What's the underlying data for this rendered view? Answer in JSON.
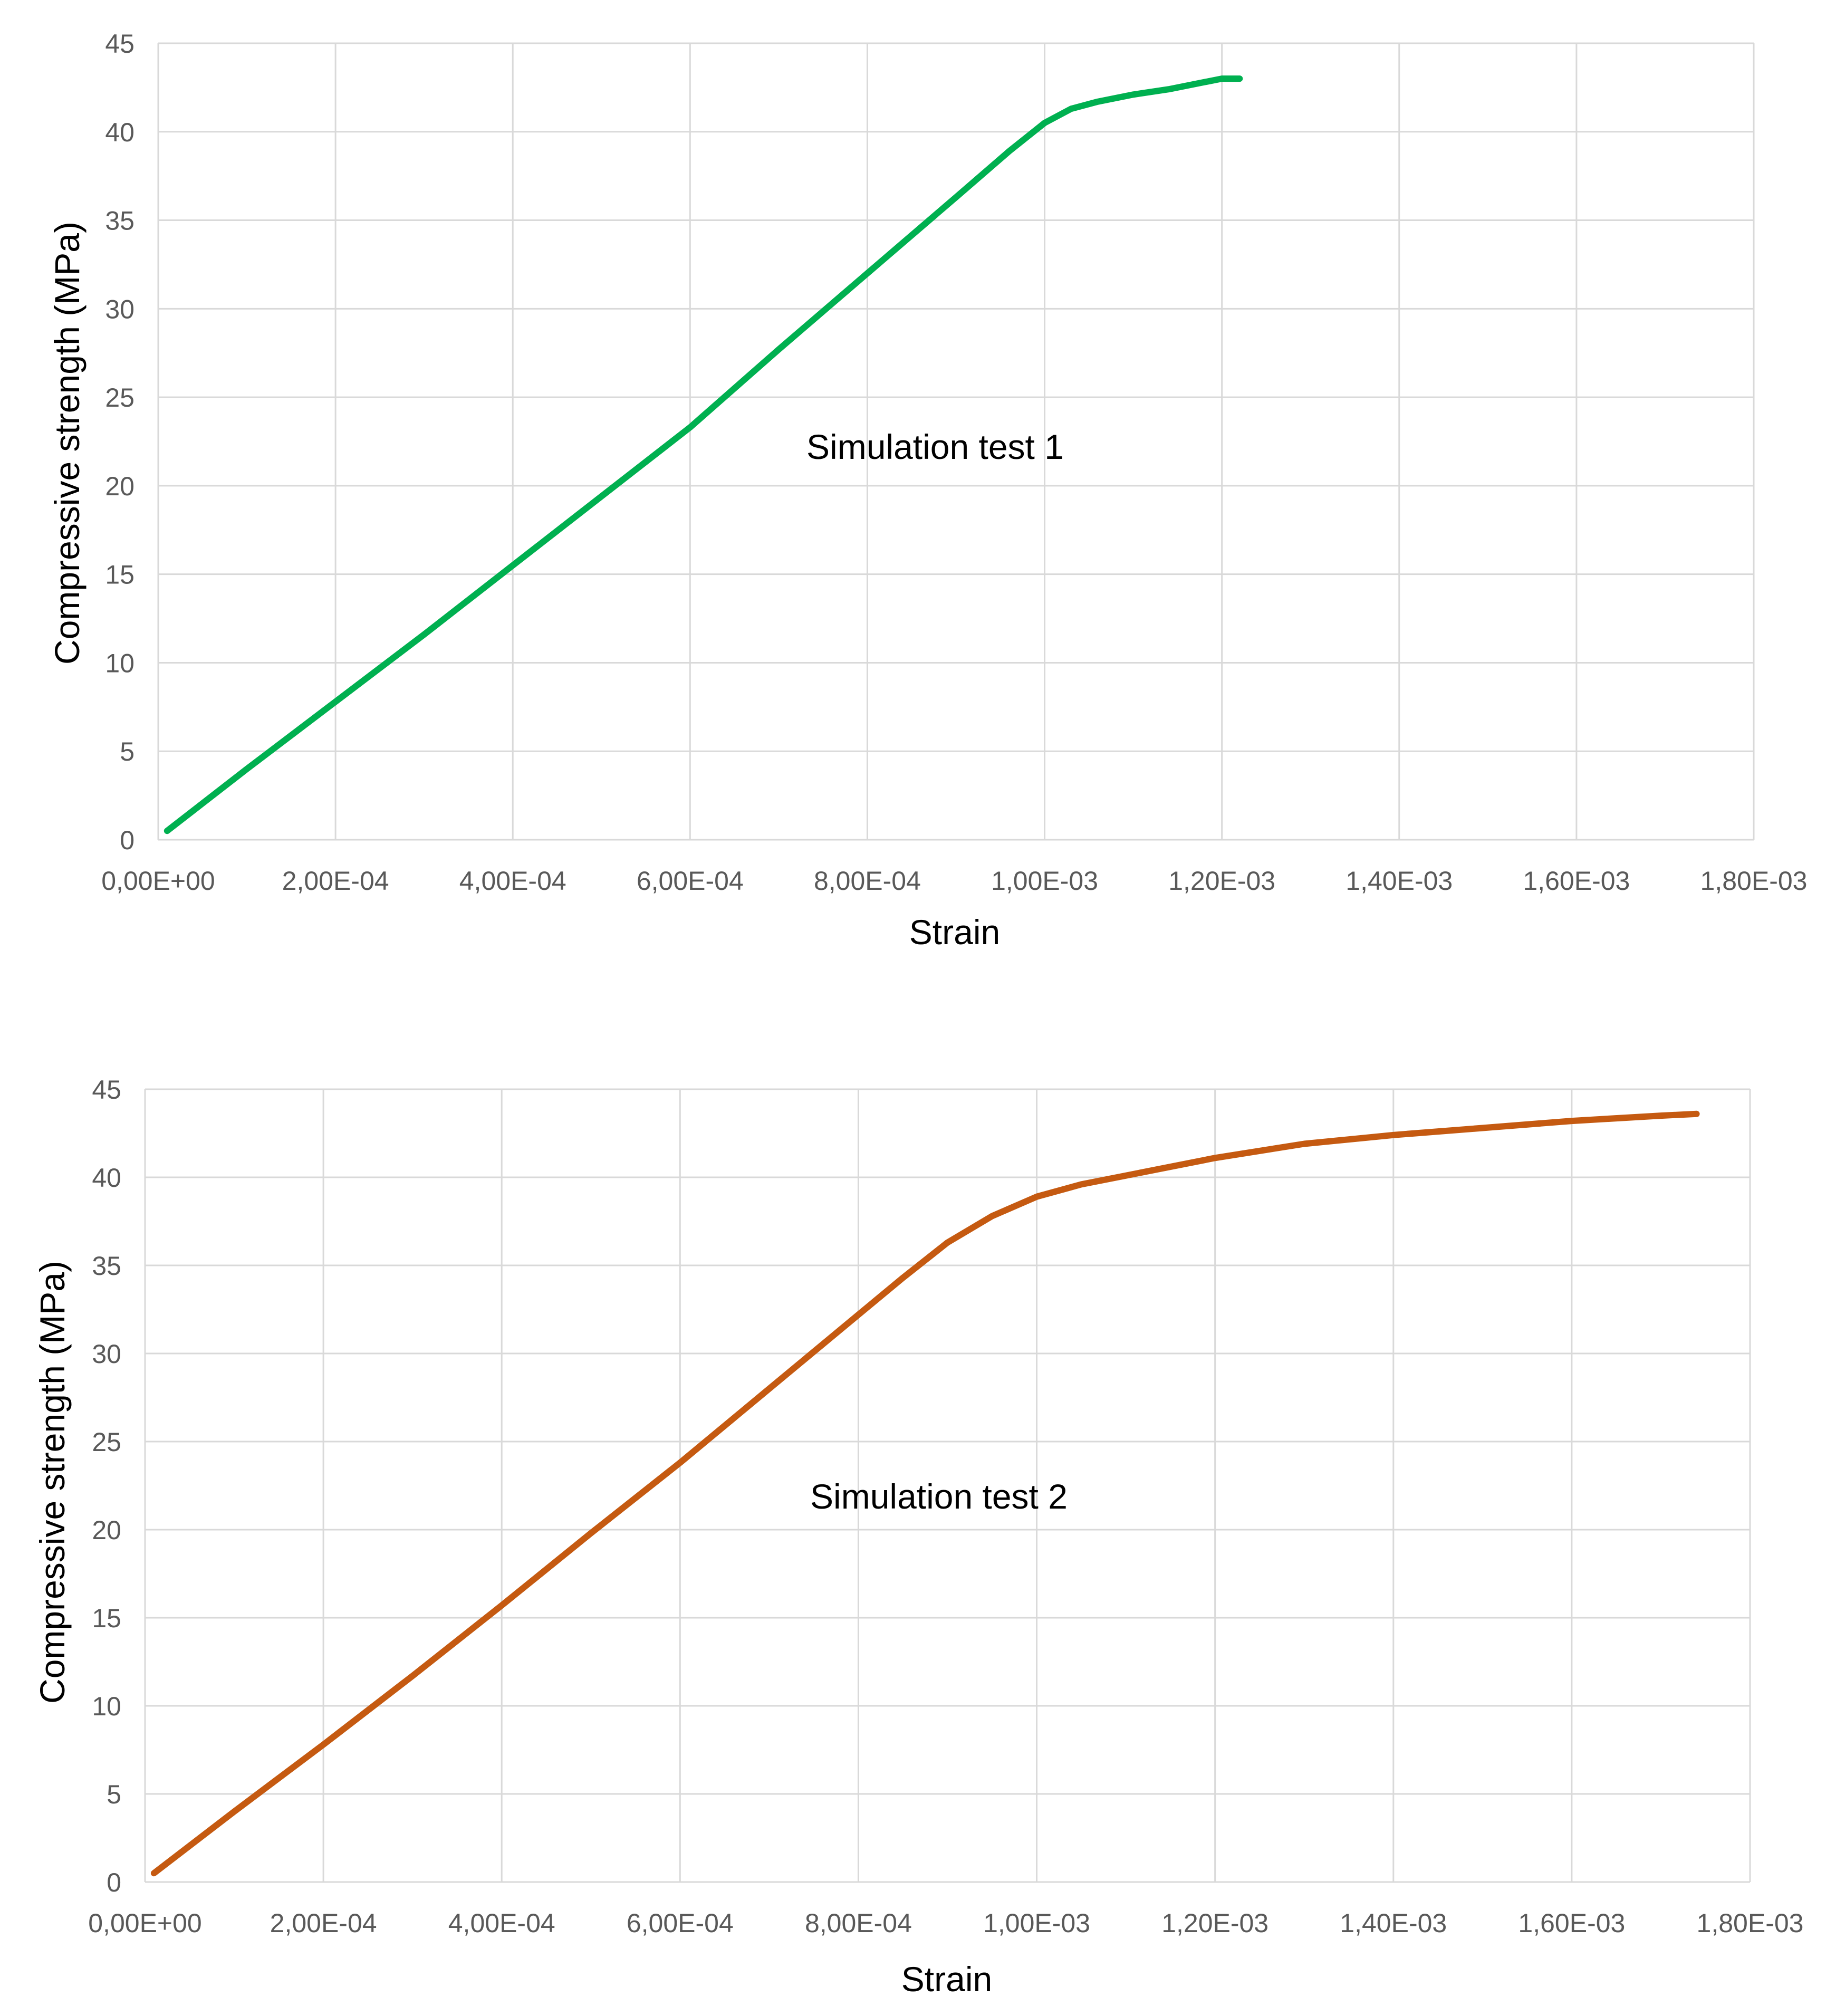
{
  "chart_data": [
    {
      "type": "line",
      "xlabel": "Strain",
      "ylabel": "Compressive strength (MPa)",
      "annotation": "Simulation test 1",
      "xlim": [
        0,
        0.0018
      ],
      "ylim": [
        0,
        45
      ],
      "x_ticks": [
        "0,00E+00",
        "2,00E-04",
        "4,00E-04",
        "6,00E-04",
        "8,00E-04",
        "1,00E-03",
        "1,20E-03",
        "1,40E-03",
        "1,60E-03",
        "1,80E-03"
      ],
      "y_ticks": [
        "0",
        "5",
        "10",
        "15",
        "20",
        "25",
        "30",
        "35",
        "40",
        "45"
      ],
      "grid": true,
      "series": [
        {
          "color": "#00b050",
          "x": [
            1e-05,
            0.0001,
            0.0002,
            0.0003,
            0.0004,
            0.0005,
            0.0006,
            0.0007,
            0.0008,
            0.0009,
            0.00096,
            0.001,
            0.00103,
            0.00106,
            0.0011,
            0.00114,
            0.00118,
            0.0012,
            0.00122
          ],
          "y": [
            0.5,
            4,
            7.8,
            11.6,
            15.5,
            19.4,
            23.3,
            27.7,
            32,
            36.3,
            38.9,
            40.5,
            41.3,
            41.7,
            42.1,
            42.4,
            42.8,
            43.0,
            43.0
          ]
        }
      ]
    },
    {
      "type": "line",
      "xlabel": "Strain",
      "ylabel": "Compressive strength (MPa)",
      "annotation": "Simulation test 2",
      "xlim": [
        0,
        0.0018
      ],
      "ylim": [
        0,
        45
      ],
      "x_ticks": [
        "0,00E+00",
        "2,00E-04",
        "4,00E-04",
        "6,00E-04",
        "8,00E-04",
        "1,00E-03",
        "1,20E-03",
        "1,40E-03",
        "1,60E-03",
        "1,80E-03"
      ],
      "y_ticks": [
        "0",
        "5",
        "10",
        "15",
        "20",
        "25",
        "30",
        "35",
        "40",
        "45"
      ],
      "grid": true,
      "series": [
        {
          "color": "#c55a11",
          "x": [
            1e-05,
            0.0001,
            0.0002,
            0.0003,
            0.0004,
            0.0005,
            0.0006,
            0.0007,
            0.0008,
            0.00085,
            0.0009,
            0.00095,
            0.001,
            0.00105,
            0.0011,
            0.0012,
            0.0013,
            0.0014,
            0.0015,
            0.0016,
            0.0017,
            0.00174
          ],
          "y": [
            0.5,
            4,
            7.8,
            11.7,
            15.7,
            19.8,
            23.8,
            28.0,
            32.2,
            34.3,
            36.3,
            37.8,
            38.9,
            39.6,
            40.1,
            41.1,
            41.9,
            42.4,
            42.8,
            43.2,
            43.5,
            43.6
          ]
        }
      ]
    }
  ]
}
